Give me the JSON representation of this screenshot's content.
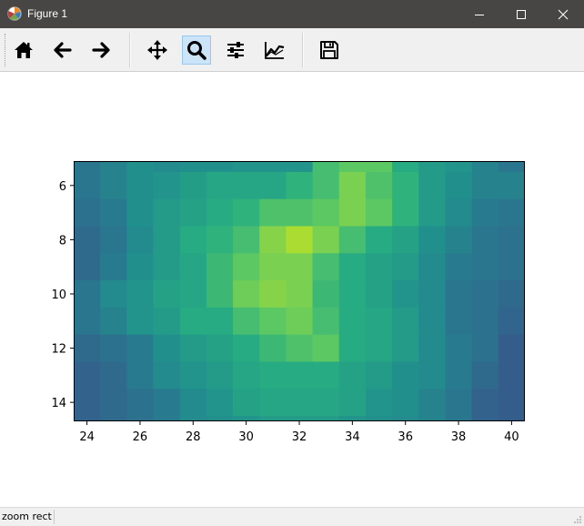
{
  "window": {
    "title": "Figure 1",
    "app_icon": "matplotlib-logo-icon",
    "controls": [
      "minimize-icon",
      "maximize-icon",
      "close-icon"
    ]
  },
  "toolbar": {
    "tools": [
      {
        "name": "home-button",
        "icon": "home-icon",
        "tooltip": "Reset original view",
        "active": false
      },
      {
        "name": "back-button",
        "icon": "arrow-left-icon",
        "tooltip": "Back to previous view",
        "active": false
      },
      {
        "name": "forward-button",
        "icon": "arrow-right-icon",
        "tooltip": "Forward to next view",
        "active": false
      },
      {
        "name": "pan-button",
        "icon": "move-arrows-icon",
        "tooltip": "Pan axes",
        "active": false
      },
      {
        "name": "zoom-button",
        "icon": "magnifier-icon",
        "tooltip": "Zoom to rectangle",
        "active": true
      },
      {
        "name": "subplots-button",
        "icon": "sliders-icon",
        "tooltip": "Configure subplots",
        "active": false
      },
      {
        "name": "edit-axes-button",
        "icon": "line-chart-icon",
        "tooltip": "Edit axis, curve and image parameters",
        "active": false
      },
      {
        "name": "save-button",
        "icon": "floppy-disk-icon",
        "tooltip": "Save the figure",
        "active": false
      }
    ]
  },
  "status": {
    "text": "zoom rect"
  },
  "chart_data": {
    "type": "heatmap",
    "colormap": "viridis",
    "x_ticks": [
      24,
      26,
      28,
      30,
      32,
      34,
      36,
      38,
      40
    ],
    "y_ticks": [
      6,
      8,
      10,
      12,
      14
    ],
    "x_ticklabels": [
      "24",
      "26",
      "28",
      "30",
      "32",
      "34",
      "36",
      "38",
      "40"
    ],
    "y_ticklabels": [
      "6",
      "8",
      "10",
      "12",
      "14"
    ],
    "xlim": [
      23.5,
      40.5
    ],
    "ylim": [
      14.7,
      5.1
    ],
    "y_inverted": true,
    "x_cells": [
      24,
      25,
      26,
      27,
      28,
      29,
      30,
      31,
      32,
      33,
      34,
      35,
      36,
      37,
      38,
      39,
      40
    ],
    "y_cells": [
      5,
      6,
      7,
      8,
      9,
      10,
      11,
      12,
      13,
      14,
      15
    ],
    "values": [
      [
        0.4,
        0.45,
        0.5,
        0.48,
        0.5,
        0.5,
        0.52,
        0.52,
        0.52,
        0.7,
        0.75,
        0.75,
        0.62,
        0.55,
        0.52,
        0.45,
        0.4
      ],
      [
        0.4,
        0.45,
        0.5,
        0.52,
        0.56,
        0.6,
        0.6,
        0.6,
        0.65,
        0.7,
        0.8,
        0.72,
        0.65,
        0.55,
        0.5,
        0.45,
        0.45
      ],
      [
        0.38,
        0.42,
        0.5,
        0.55,
        0.58,
        0.62,
        0.65,
        0.72,
        0.72,
        0.75,
        0.8,
        0.75,
        0.65,
        0.55,
        0.48,
        0.42,
        0.4
      ],
      [
        0.35,
        0.4,
        0.48,
        0.55,
        0.62,
        0.65,
        0.7,
        0.82,
        0.88,
        0.8,
        0.7,
        0.62,
        0.58,
        0.5,
        0.45,
        0.4,
        0.38
      ],
      [
        0.35,
        0.42,
        0.5,
        0.55,
        0.6,
        0.68,
        0.75,
        0.8,
        0.8,
        0.7,
        0.62,
        0.58,
        0.55,
        0.48,
        0.42,
        0.4,
        0.38
      ],
      [
        0.4,
        0.48,
        0.52,
        0.58,
        0.6,
        0.68,
        0.78,
        0.82,
        0.8,
        0.68,
        0.62,
        0.58,
        0.52,
        0.48,
        0.4,
        0.38,
        0.35
      ],
      [
        0.4,
        0.45,
        0.52,
        0.55,
        0.62,
        0.62,
        0.7,
        0.75,
        0.78,
        0.7,
        0.62,
        0.6,
        0.55,
        0.48,
        0.4,
        0.38,
        0.33
      ],
      [
        0.35,
        0.38,
        0.42,
        0.5,
        0.55,
        0.58,
        0.62,
        0.68,
        0.72,
        0.75,
        0.62,
        0.6,
        0.55,
        0.48,
        0.42,
        0.38,
        0.3
      ],
      [
        0.32,
        0.35,
        0.42,
        0.48,
        0.52,
        0.55,
        0.6,
        0.62,
        0.62,
        0.62,
        0.58,
        0.55,
        0.5,
        0.48,
        0.42,
        0.35,
        0.3
      ],
      [
        0.32,
        0.35,
        0.38,
        0.42,
        0.48,
        0.52,
        0.58,
        0.6,
        0.6,
        0.6,
        0.58,
        0.52,
        0.5,
        0.45,
        0.4,
        0.32,
        0.3
      ],
      [
        0.32,
        0.35,
        0.38,
        0.42,
        0.48,
        0.5,
        0.52,
        0.55,
        0.55,
        0.55,
        0.52,
        0.5,
        0.48,
        0.45,
        0.4,
        0.32,
        0.3
      ]
    ]
  }
}
